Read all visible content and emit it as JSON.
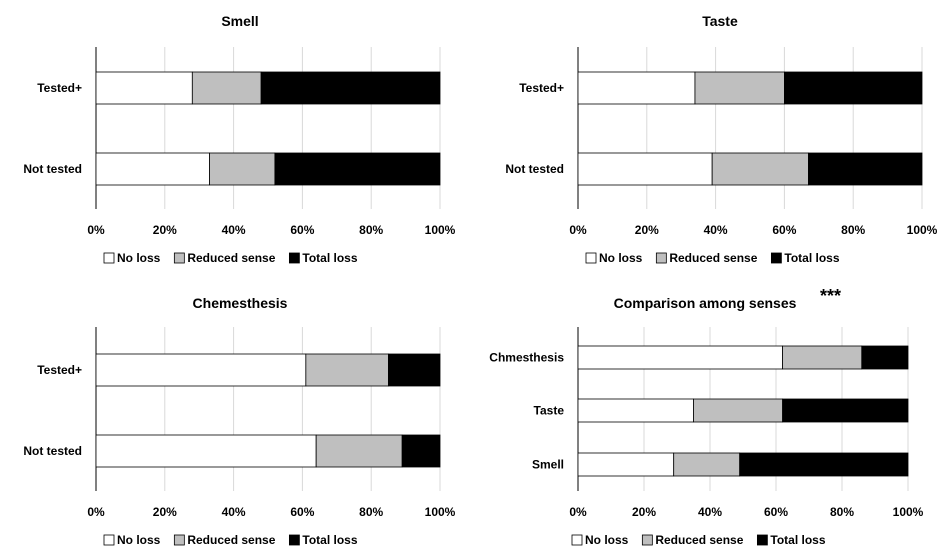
{
  "colors": {
    "no_loss": "#ffffff",
    "reduced_sense": "#bfbfbf",
    "total_loss": "#000000",
    "bar_stroke": "#000000",
    "grid": "#d9d9d9"
  },
  "chart_data": [
    {
      "type": "bar",
      "orientation": "horizontal",
      "stacked": "percent",
      "title": "Smell",
      "categories": [
        "Tested+",
        "Not tested"
      ],
      "series": [
        {
          "name": "No loss",
          "values": [
            28,
            33
          ]
        },
        {
          "name": "Reduced sense",
          "values": [
            20,
            19
          ]
        },
        {
          "name": "Total loss",
          "values": [
            52,
            48
          ]
        }
      ],
      "xticks": [
        "0%",
        "20%",
        "40%",
        "60%",
        "80%",
        "100%"
      ],
      "xlim": [
        0,
        100
      ],
      "grid": true,
      "legend_position": "bottom"
    },
    {
      "type": "bar",
      "orientation": "horizontal",
      "stacked": "percent",
      "title": "Taste",
      "categories": [
        "Tested+",
        "Not tested"
      ],
      "series": [
        {
          "name": "No loss",
          "values": [
            34,
            39
          ]
        },
        {
          "name": "Reduced sense",
          "values": [
            26,
            28
          ]
        },
        {
          "name": "Total loss",
          "values": [
            40,
            33
          ]
        }
      ],
      "xticks": [
        "0%",
        "20%",
        "40%",
        "60%",
        "80%",
        "100%"
      ],
      "xlim": [
        0,
        100
      ],
      "grid": true,
      "legend_position": "bottom"
    },
    {
      "type": "bar",
      "orientation": "horizontal",
      "stacked": "percent",
      "title": "Chemesthesis",
      "categories": [
        "Tested+",
        "Not tested"
      ],
      "series": [
        {
          "name": "No loss",
          "values": [
            61,
            64
          ]
        },
        {
          "name": "Reduced sense",
          "values": [
            24,
            25
          ]
        },
        {
          "name": "Total loss",
          "values": [
            15,
            11
          ]
        }
      ],
      "xticks": [
        "0%",
        "20%",
        "40%",
        "60%",
        "80%",
        "100%"
      ],
      "xlim": [
        0,
        100
      ],
      "grid": true,
      "legend_position": "bottom"
    },
    {
      "type": "bar",
      "orientation": "horizontal",
      "stacked": "percent",
      "title": "Comparison among senses",
      "annotation": "***",
      "categories": [
        "Chmesthesis",
        "Taste",
        "Smell"
      ],
      "series": [
        {
          "name": "No loss",
          "values": [
            62,
            35,
            29
          ]
        },
        {
          "name": "Reduced sense",
          "values": [
            24,
            27,
            20
          ]
        },
        {
          "name": "Total loss",
          "values": [
            14,
            38,
            51
          ]
        }
      ],
      "xticks": [
        "0%",
        "20%",
        "40%",
        "60%",
        "80%",
        "100%"
      ],
      "xlim": [
        0,
        100
      ],
      "grid": true,
      "legend_position": "bottom"
    }
  ]
}
